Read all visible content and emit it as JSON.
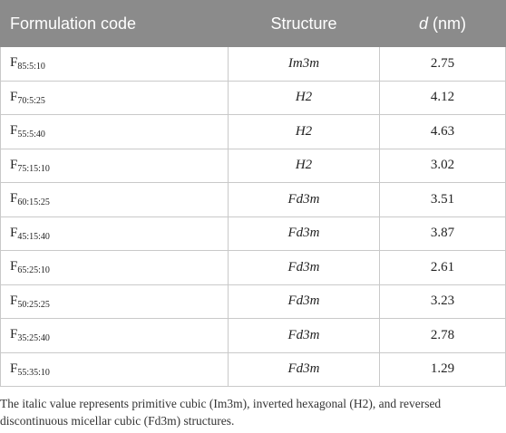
{
  "table": {
    "headers": {
      "formulation": "Formulation code",
      "structure": "Structure",
      "d_symbol": "d",
      "d_unit": " (nm)"
    },
    "rows": [
      {
        "code_main": "F",
        "code_sub": "85:5:10",
        "structure": "Im3m",
        "d": "2.75"
      },
      {
        "code_main": "F",
        "code_sub": "70:5:25",
        "structure": "H2",
        "d": "4.12"
      },
      {
        "code_main": "F",
        "code_sub": "55:5:40",
        "structure": "H2",
        "d": "4.63"
      },
      {
        "code_main": "F",
        "code_sub": "75:15:10",
        "structure": "H2",
        "d": "3.02"
      },
      {
        "code_main": "F",
        "code_sub": "60:15:25",
        "structure": "Fd3m",
        "d": "3.51"
      },
      {
        "code_main": "F",
        "code_sub": "45:15:40",
        "structure": "Fd3m",
        "d": "3.87"
      },
      {
        "code_main": "F",
        "code_sub": "65:25:10",
        "structure": "Fd3m",
        "d": "2.61"
      },
      {
        "code_main": "F",
        "code_sub": "50:25:25",
        "structure": "Fd3m",
        "d": "3.23"
      },
      {
        "code_main": "F",
        "code_sub": "35:25:40",
        "structure": "Fd3m",
        "d": "2.78"
      },
      {
        "code_main": "F",
        "code_sub": "55:35:10",
        "structure": "Fd3m",
        "d": "1.29"
      }
    ]
  },
  "footnote": "The italic value represents primitive cubic (Im3m), inverted hexagonal (H2), and reversed discontinuous micellar cubic (Fd3m) structures."
}
